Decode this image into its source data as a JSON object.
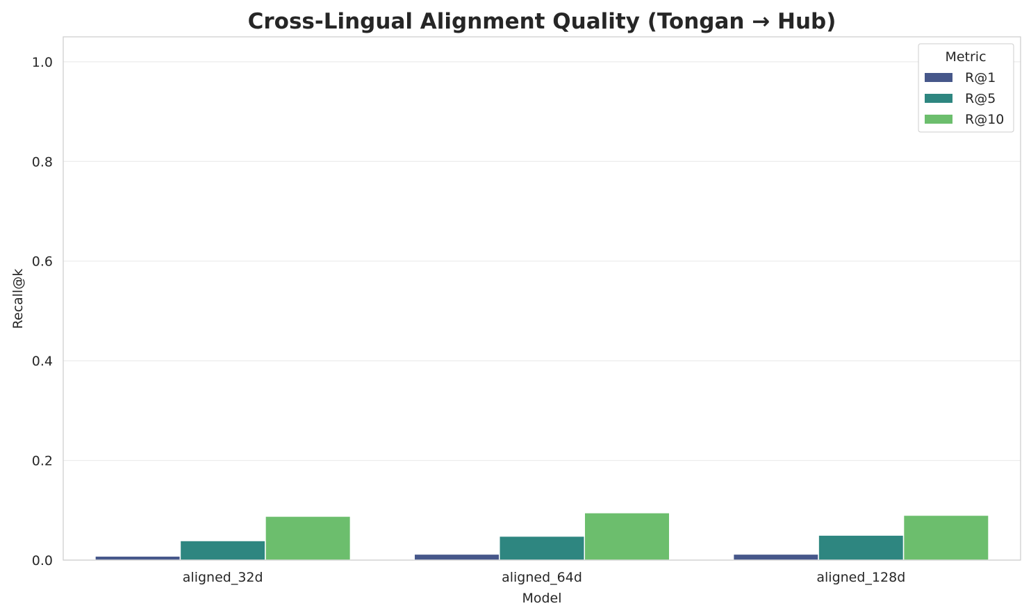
{
  "chart_data": {
    "type": "bar",
    "title": "Cross-Lingual Alignment Quality (Tongan → Hub)",
    "xlabel": "Model",
    "ylabel": "Recall@k",
    "categories": [
      "aligned_32d",
      "aligned_64d",
      "aligned_128d"
    ],
    "series": [
      {
        "name": "R@1",
        "values": [
          0.008,
          0.012,
          0.012
        ],
        "color": "#46578a"
      },
      {
        "name": "R@5",
        "values": [
          0.039,
          0.048,
          0.05
        ],
        "color": "#2e8680"
      },
      {
        "name": "R@10",
        "values": [
          0.088,
          0.095,
          0.09
        ],
        "color": "#6cbe6d"
      }
    ],
    "ylim": [
      0,
      1.05
    ],
    "yticks": [
      "0.0",
      "0.2",
      "0.4",
      "0.6",
      "0.8",
      "1.0"
    ],
    "grid": true,
    "legend": {
      "title": "Metric",
      "placement": "top-right"
    }
  }
}
